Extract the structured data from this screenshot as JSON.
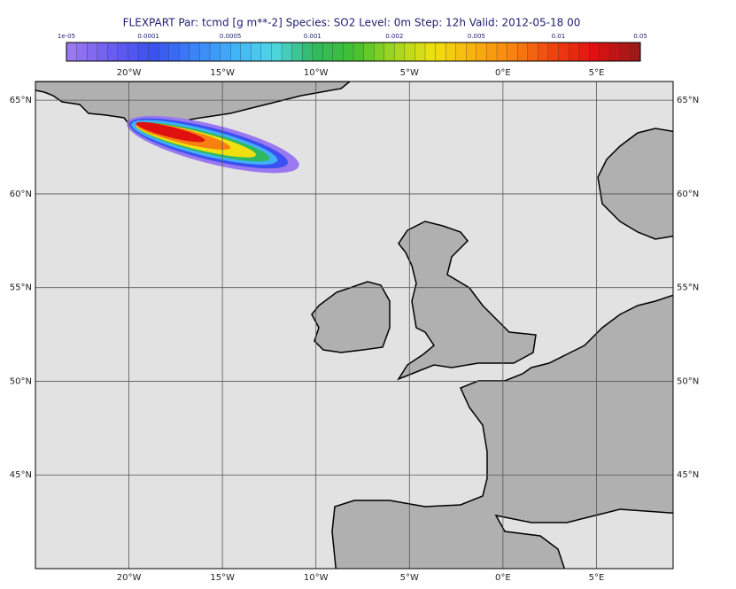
{
  "title": "FLEXPART Par: tcmd  [g m**-2]   Species: SO2     Level: 0m   Step: 12h Valid: 2012-05-18 00",
  "colorbar": {
    "labels": [
      "1e-05",
      "0.0001",
      "0.0005",
      "0.001",
      "0.002",
      "0.005",
      "0.01",
      "0.05"
    ],
    "colors": [
      "#9a78f0",
      "#6a5cf0",
      "#3a50f0",
      "#3a80f8",
      "#40b0f8",
      "#50d8e8",
      "#30b860",
      "#40c030",
      "#a0d820",
      "#f0e010",
      "#f8b010",
      "#f88010",
      "#f04010",
      "#e01010",
      "#a01818"
    ]
  },
  "map": {
    "lon_range": [
      -25,
      9.1
    ],
    "lat_range": [
      40,
      66
    ],
    "lon_ticks": [
      {
        "value": -20,
        "label": "20°W"
      },
      {
        "value": -15,
        "label": "15°W"
      },
      {
        "value": -10,
        "label": "10°W"
      },
      {
        "value": -5,
        "label": "5°W"
      },
      {
        "value": 0,
        "label": "0°E"
      },
      {
        "value": 5,
        "label": "5°E"
      }
    ],
    "lat_ticks": [
      {
        "value": 65,
        "label": "65°N"
      },
      {
        "value": 60,
        "label": "60°N"
      },
      {
        "value": 55,
        "label": "55°N"
      },
      {
        "value": 50,
        "label": "50°N"
      },
      {
        "value": 45,
        "label": "45°N"
      }
    ]
  }
}
